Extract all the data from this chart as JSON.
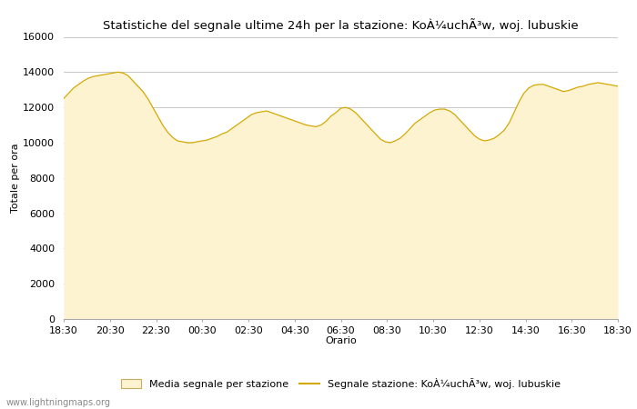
{
  "title": "Statistiche del segnale ultime 24h per la stazione: KoÀ¼uchÃ³w, woj. lubuskie",
  "xlabel": "Orario",
  "ylabel": "Totale per ora",
  "ylim": [
    0,
    16000
  ],
  "yticks": [
    0,
    2000,
    4000,
    6000,
    8000,
    10000,
    12000,
    14000,
    16000
  ],
  "xtick_labels": [
    "18:30",
    "20:30",
    "22:30",
    "00:30",
    "02:30",
    "04:30",
    "06:30",
    "08:30",
    "10:30",
    "12:30",
    "14:30",
    "16:30",
    "18:30"
  ],
  "fill_color": "#fef3d0",
  "line_color": "#d4a800",
  "bg_color": "#ffffff",
  "grid_color": "#c8c8c8",
  "watermark": "www.lightningmaps.org",
  "legend_fill_label": "Media segnale per stazione",
  "legend_line_label": "Segnale stazione: KoÀ¼uchÃ³w, woj. lubuskie",
  "x_values": [
    0,
    1,
    2,
    3,
    4,
    5,
    6,
    7,
    8,
    9,
    10,
    11,
    12,
    13,
    14,
    15,
    16,
    17,
    18,
    19,
    20,
    21,
    22,
    23,
    24,
    25,
    26,
    27,
    28,
    29,
    30,
    31,
    32,
    33,
    34,
    35,
    36,
    37,
    38,
    39,
    40,
    41,
    42,
    43,
    44,
    45,
    46,
    47,
    48,
    49,
    50,
    51,
    52,
    53,
    54,
    55,
    56,
    57,
    58,
    59,
    60,
    61,
    62,
    63,
    64,
    65,
    66,
    67,
    68,
    69,
    70,
    71,
    72,
    73,
    74,
    75,
    76,
    77,
    78,
    79,
    80,
    81,
    82,
    83,
    84,
    85,
    86,
    87,
    88,
    89,
    90,
    91,
    92,
    93,
    94,
    95,
    96,
    97,
    98,
    99,
    100,
    101,
    102,
    103,
    104,
    105,
    106,
    107,
    108,
    109,
    110,
    111,
    112
  ],
  "y_values": [
    12500,
    12800,
    13100,
    13300,
    13500,
    13650,
    13750,
    13800,
    13850,
    13900,
    13950,
    14000,
    13950,
    13800,
    13500,
    13200,
    12900,
    12500,
    12000,
    11500,
    11000,
    10600,
    10300,
    10100,
    10050,
    10000,
    10000,
    10050,
    10100,
    10150,
    10250,
    10350,
    10500,
    10600,
    10800,
    11000,
    11200,
    11400,
    11600,
    11700,
    11750,
    11800,
    11700,
    11600,
    11500,
    11400,
    11300,
    11200,
    11100,
    11000,
    10950,
    10900,
    11000,
    11200,
    11500,
    11700,
    11950,
    12000,
    11900,
    11700,
    11400,
    11100,
    10800,
    10500,
    10200,
    10050,
    10000,
    10100,
    10250,
    10500,
    10800,
    11100,
    11300,
    11500,
    11700,
    11850,
    11900,
    11900,
    11800,
    11600,
    11300,
    11000,
    10700,
    10400,
    10200,
    10100,
    10150,
    10250,
    10450,
    10700,
    11100,
    11700,
    12300,
    12800,
    13100,
    13250,
    13300,
    13300,
    13200,
    13100,
    13000,
    12900,
    12950,
    13050,
    13150,
    13200,
    13300,
    13350,
    13400,
    13350,
    13300,
    13250,
    13200
  ]
}
